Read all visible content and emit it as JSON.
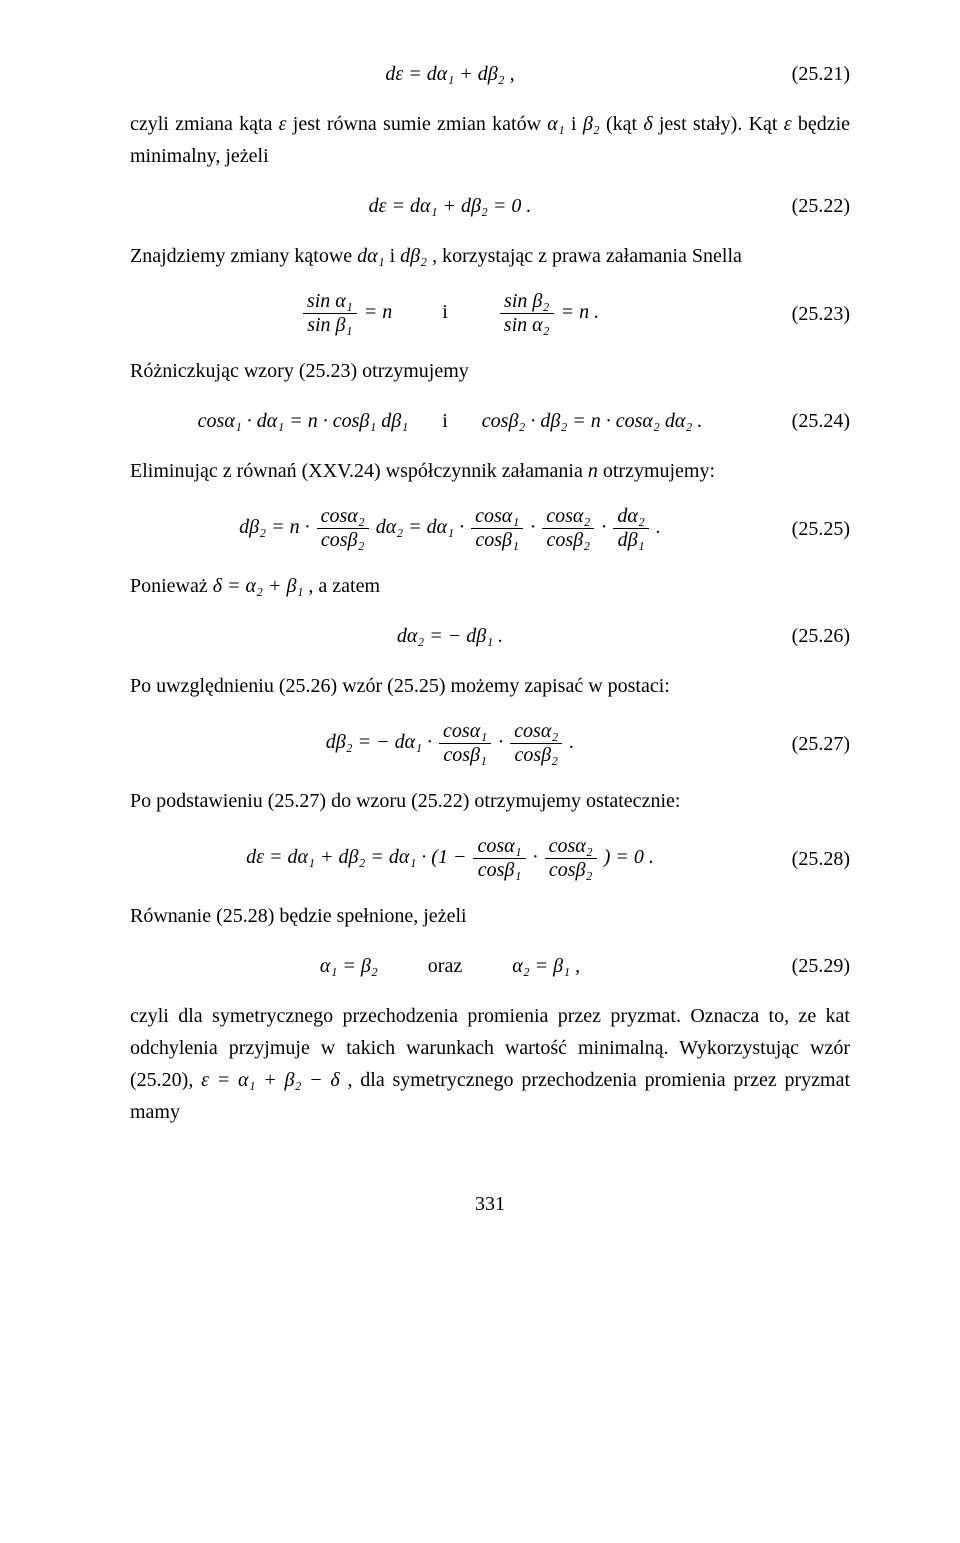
{
  "colors": {
    "text": "#000000",
    "background": "#ffffff",
    "rule": "#000000"
  },
  "typography": {
    "family": "Times New Roman",
    "body_size_pt": 15,
    "line_height": 1.6
  },
  "eq21": {
    "expr": "dε = dα₁ + dβ₂ ,",
    "num": "(25.21)"
  },
  "p1": {
    "a": "czyli zmiana kąta ",
    "eps": "ε",
    "b": " jest równa sumie zmian katów ",
    "a1": "α₁",
    "and": " i ",
    "b2": "β₂",
    "c": " (kąt ",
    "delta": "δ",
    "d": " jest stały). Kąt ",
    "eps2": "ε",
    "e": " będzie minimalny, jeżeli"
  },
  "eq22": {
    "expr": "dε = dα₁ + dβ₂ = 0 .",
    "num": "(25.22)"
  },
  "p2": {
    "a": "Znajdziemy zmiany kątowe ",
    "da1": "dα₁",
    "and": " i ",
    "db2": "dβ₂",
    "b": ", korzystając z prawa załamania Snella"
  },
  "eq23": {
    "f1num": "sin α₁",
    "f1den": "sin β₁",
    "eqn": " = n",
    "sep": "i",
    "f2num": "sin β₂",
    "f2den": "sin α₂",
    "eqn2": " = n .",
    "num": "(25.23)"
  },
  "p3": "Różniczkując wzory (25.23) otrzymujemy",
  "eq24": {
    "left": "cosα₁ · dα₁ = n · cosβ₁ dβ₁",
    "sep": "i",
    "right": "cosβ₂ · dβ₂ = n · cosα₂ dα₂ .",
    "num": "(25.24)"
  },
  "p4": {
    "a": "Eliminując z równań (XXV.24) współczynnik załamania ",
    "n": "n",
    "b": " otrzymujemy:"
  },
  "eq25": {
    "lead": "dβ₂ = n · ",
    "f1num": "cosα₂",
    "f1den": "cosβ₂",
    "mid1": " dα₂ = dα₁ · ",
    "f2num": "cosα₁",
    "f2den": "cosβ₁",
    "dot": " · ",
    "f3num": "cosα₂",
    "f3den": "cosβ₂",
    "dot2": " · ",
    "f4num": "dα₂",
    "f4den": "dβ₁",
    "tail": " .",
    "num": "(25.25)"
  },
  "p5": {
    "a": "Ponieważ ",
    "expr": "δ = α₂ + β₁",
    "b": ", a zatem"
  },
  "eq26": {
    "expr": "dα₂ = − dβ₁ .",
    "num": "(25.26)"
  },
  "p6": "Po uwzględnieniu (25.26) wzór (25.25) możemy zapisać w postaci:",
  "eq27": {
    "lead": "dβ₂ = − dα₁ · ",
    "f1num": "cosα₁",
    "f1den": "cosβ₁",
    "dot": " · ",
    "f2num": "cosα₂",
    "f2den": "cosβ₂",
    "tail": " .",
    "num": "(25.27)"
  },
  "p7": "Po podstawieniu (25.27) do wzoru (25.22) otrzymujemy ostatecznie:",
  "eq28": {
    "lead": "dε = dα₁ + dβ₂ = dα₁ · (1 − ",
    "f1num": "cosα₁",
    "f1den": "cosβ₁",
    "dot": " · ",
    "f2num": "cosα₂",
    "f2den": "cosβ₂",
    "tail": " ) = 0 .",
    "num": "(25.28)"
  },
  "p8": "Równanie (25.28) będzie spełnione, jeżeli",
  "eq29": {
    "left": "α₁ = β₂",
    "sep": "oraz",
    "right": "α₂ = β₁ ,",
    "num": "(25.29)"
  },
  "p9": {
    "a": "czyli dla symetrycznego przechodzenia promienia przez pryzmat. Oznacza to, ze kat odchylenia przyjmuje w takich warunkach wartość minimalną. Wykorzystując wzór (25.20), ",
    "expr": "ε = α₁ + β₂ − δ",
    "b": ", dla symetrycznego przechodzenia promienia przez pryzmat mamy"
  },
  "pagenum": "331"
}
